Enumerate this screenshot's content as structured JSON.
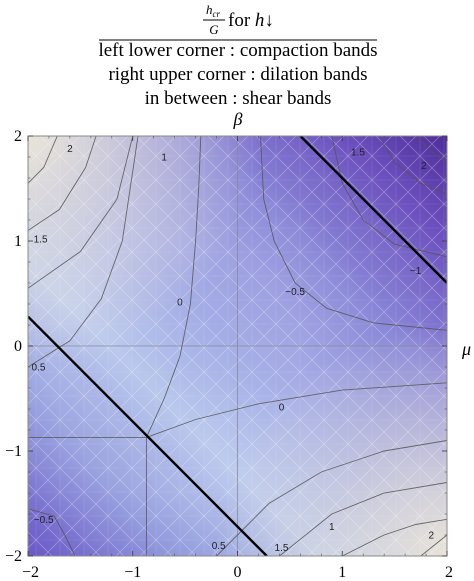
{
  "title": {
    "fraction_numerator": "h",
    "fraction_numerator_subscript": "cr",
    "fraction_denominator": "G",
    "suffix_text": " for ",
    "suffix_italic": "h",
    "suffix_arrow": "↓",
    "lines": [
      "left lower corner :  compaction bands",
      "right upper corner :  dilation bands",
      "in between :  shear bands"
    ]
  },
  "chart_data": {
    "type": "contour",
    "title": "",
    "xlabel": "μ",
    "ylabel": "β",
    "xlim": [
      -2,
      2
    ],
    "ylim": [
      -2,
      2
    ],
    "x_ticks": [
      "−2",
      "−1",
      "0",
      "1",
      "2"
    ],
    "y_ticks": [
      "−2",
      "−1",
      "0",
      "1",
      "2"
    ],
    "x_tick_values": [
      -2,
      -1,
      0,
      1,
      2
    ],
    "y_tick_values": [
      -2,
      -1,
      0,
      1,
      2
    ],
    "saddle_point": {
      "mu": -0.87,
      "beta": -0.87
    },
    "bold_lines": [
      {
        "mu": [
          -2,
          0.28
        ],
        "beta": [
          0.28,
          -2
        ]
      },
      {
        "mu": [
          0.6,
          2
        ],
        "beta": [
          2,
          0.6
        ]
      }
    ],
    "contours": [
      {
        "level": "0",
        "curves": [
          [
            [
              -0.87,
              -0.87
            ],
            [
              -0.7,
              -0.5
            ],
            [
              -0.55,
              -0.1
            ],
            [
              -0.45,
              0.4
            ],
            [
              -0.4,
              1
            ],
            [
              -0.37,
              1.5
            ],
            [
              -0.35,
              2
            ]
          ],
          [
            [
              -0.87,
              -0.87
            ],
            [
              -0.4,
              -0.7
            ],
            [
              0.2,
              -0.55
            ],
            [
              1,
              -0.42
            ],
            [
              2,
              -0.35
            ]
          ]
        ]
      },
      {
        "level": "−0.5",
        "curves": [
          [
            [
              0.22,
              2
            ],
            [
              0.25,
              1.4
            ],
            [
              0.35,
              1
            ],
            [
              0.55,
              0.6
            ],
            [
              0.85,
              0.36
            ],
            [
              1.3,
              0.22
            ],
            [
              2,
              0.15
            ]
          ]
        ]
      },
      {
        "level": "−1",
        "curves": [
          [
            [
              0.9,
              2
            ],
            [
              1.0,
              1.55
            ],
            [
              1.2,
              1.2
            ],
            [
              1.5,
              0.97
            ],
            [
              2,
              0.85
            ]
          ]
        ]
      },
      {
        "level": "1.5",
        "curves": [
          [
            [
              1.35,
              2
            ],
            [
              1.5,
              1.75
            ],
            [
              1.75,
              1.55
            ],
            [
              2,
              1.45
            ]
          ]
        ]
      },
      {
        "level": "2",
        "curves": [
          [
            [
              1.7,
              2
            ],
            [
              1.85,
              1.85
            ],
            [
              2,
              1.75
            ]
          ]
        ]
      },
      {
        "level": "1.5",
        "curves": [
          [
            [
              -2,
              1.1
            ],
            [
              -1.7,
              1.3
            ],
            [
              -1.45,
              1.7
            ],
            [
              -1.35,
              2
            ]
          ]
        ]
      },
      {
        "level": "1",
        "curves": [
          [
            [
              -2,
              0.55
            ],
            [
              -1.5,
              0.9
            ],
            [
              -1.15,
              1.4
            ],
            [
              -1.0,
              2
            ]
          ]
        ]
      },
      {
        "level": "0.5",
        "curves": [
          [
            [
              -2,
              -0.2
            ],
            [
              -1.6,
              0.05
            ],
            [
              -1.3,
              0.45
            ],
            [
              -1.1,
              1
            ],
            [
              -0.95,
              2
            ]
          ]
        ]
      },
      {
        "level": "2",
        "curves": [
          [
            [
              -2,
              1.55
            ],
            [
              -1.85,
              1.7
            ],
            [
              -1.72,
              2
            ]
          ]
        ]
      },
      {
        "level": "1",
        "curves": [
          [
            [
              -2,
              -0.87
            ],
            [
              -0.87,
              -0.87
            ],
            [
              -0.87,
              -2
            ]
          ]
        ]
      },
      {
        "level": "−0.5",
        "curves": [
          [
            [
              -2,
              -1.55
            ],
            [
              -1.75,
              -1.62
            ],
            [
              -1.65,
              -1.8
            ],
            [
              -1.55,
              -2
            ]
          ]
        ]
      },
      {
        "level": "0.5",
        "curves": [
          [
            [
              -0.2,
              -2
            ],
            [
              0.3,
              -1.5
            ],
            [
              0.8,
              -1.2
            ],
            [
              1.4,
              -1
            ],
            [
              2,
              -0.9
            ]
          ]
        ]
      },
      {
        "level": "1",
        "curves": [
          [
            [
              0.4,
              -2
            ],
            [
              0.9,
              -1.6
            ],
            [
              1.4,
              -1.4
            ],
            [
              2,
              -1.3
            ]
          ]
        ]
      },
      {
        "level": "1.5",
        "curves": [
          [
            [
              1.0,
              -2
            ],
            [
              1.4,
              -1.8
            ],
            [
              1.7,
              -1.7
            ],
            [
              2,
              -1.65
            ]
          ]
        ]
      },
      {
        "level": "2",
        "curves": [
          [
            [
              1.75,
              -2
            ],
            [
              2,
              -1.8
            ]
          ]
        ]
      }
    ],
    "contour_labels": [
      {
        "text": "2",
        "mu": -1.6,
        "beta": 1.88
      },
      {
        "text": "1",
        "mu": -0.7,
        "beta": 1.8
      },
      {
        "text": "1.5",
        "mu": -1.88,
        "beta": 1.02
      },
      {
        "text": "0.5",
        "mu": -1.9,
        "beta": -0.2
      },
      {
        "text": "0",
        "mu": -0.55,
        "beta": 0.42
      },
      {
        "text": "0",
        "mu": 0.42,
        "beta": -0.58
      },
      {
        "text": "−0.5",
        "mu": 0.55,
        "beta": 0.52
      },
      {
        "text": "−1",
        "mu": 1.7,
        "beta": 0.72
      },
      {
        "text": "1.5",
        "mu": 1.15,
        "beta": 1.85
      },
      {
        "text": "2",
        "mu": 1.78,
        "beta": 1.72
      },
      {
        "text": "−0.5",
        "mu": -1.85,
        "beta": -1.65
      },
      {
        "text": "0.5",
        "mu": -0.18,
        "beta": -1.9
      },
      {
        "text": "1",
        "mu": 0.9,
        "beta": -1.72
      },
      {
        "text": "1.5",
        "mu": 0.42,
        "beta": -1.92
      },
      {
        "text": "2",
        "mu": 1.85,
        "beta": -1.8
      }
    ],
    "colors": {
      "low": "#5a3ea8",
      "mid": "#a7b3e8",
      "high": "#e8e4d8",
      "contour_line": "#555555",
      "bold_line": "#000000"
    }
  }
}
